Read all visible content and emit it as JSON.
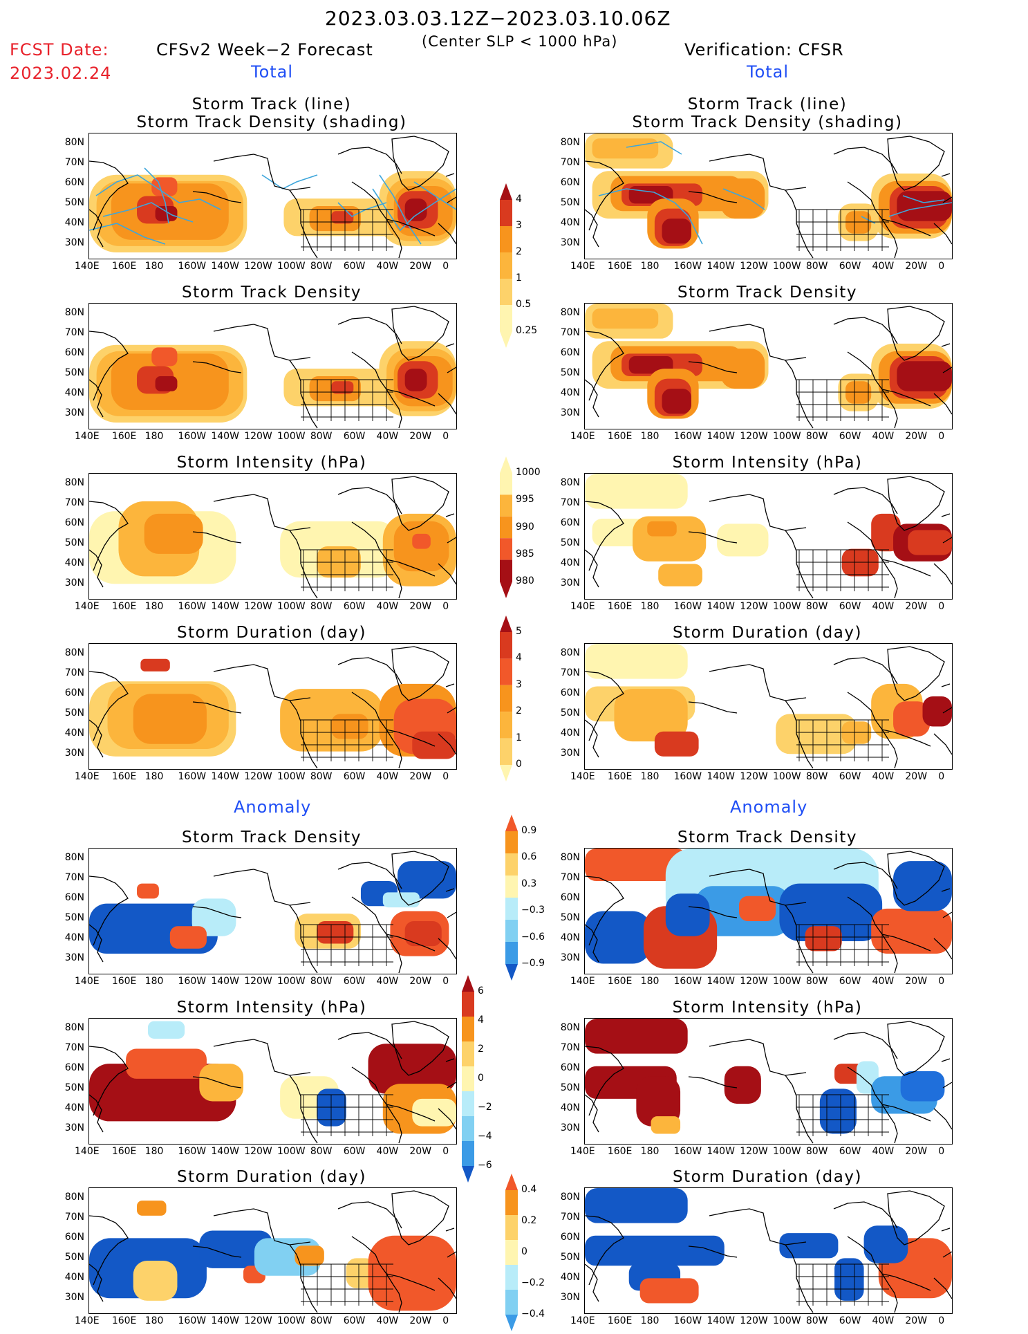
{
  "header": {
    "period": "2023.03.03.12Z−2023.03.10.06Z",
    "condition": "(Center SLP < 1000 hPa)",
    "fcst_label": "FCST Date:",
    "fcst_date": "2023.02.24",
    "left_model": "CFSv2 Week−2 Forecast",
    "right_model": "Verification: CFSR",
    "total_left": "Total",
    "total_right": "Total",
    "anomaly_left": "Anomaly",
    "anomaly_right": "Anomaly"
  },
  "panel_titles": {
    "track_line": "Storm Track (line)",
    "track_density_shading": "Storm Track Density (shading)",
    "density": "Storm Track Density",
    "intensity": "Storm Intensity (hPa)",
    "duration": "Storm Duration (day)"
  },
  "axes": {
    "lat_labels": [
      "80N",
      "70N",
      "60N",
      "50N",
      "40N",
      "30N"
    ],
    "lon_labels": [
      "140E",
      "160E",
      "180",
      "160W",
      "140W",
      "120W",
      "100W",
      "80W",
      "60W",
      "40W",
      "20W",
      "0"
    ]
  },
  "colors": {
    "lightyellow": "#fff5b0",
    "yellow": "#fdd26a",
    "lightorange": "#fcb53c",
    "orange": "#f7941d",
    "redorange": "#f1582a",
    "red": "#d93a1f",
    "darkred": "#a50f15",
    "lightblue": "#b8ecf9",
    "skyblue": "#81d0f2",
    "midblue": "#3b9be6",
    "blue": "#1f6fdb",
    "deepblue": "#1358c6",
    "track": "#3ea6db"
  },
  "colorbars": {
    "density_total": [
      "0.25",
      "0.5",
      "1",
      "2",
      "3",
      "4"
    ],
    "intensity_total": [
      "1000",
      "995",
      "990",
      "985",
      "980"
    ],
    "duration_total": [
      "0",
      "1",
      "2",
      "3",
      "4",
      "5"
    ],
    "density_anom": [
      "0.9",
      "0.6",
      "0.3",
      "−0.3",
      "−0.6",
      "−0.9"
    ],
    "intensity_anom": [
      "6",
      "4",
      "2",
      "0",
      "−2",
      "−4",
      "−6"
    ],
    "duration_anom": [
      "0.4",
      "0.2",
      "0",
      "−0.2",
      "−0.4"
    ]
  },
  "chart_data": [
    {
      "panel": "forecast_total_track",
      "type": "heatmap",
      "title": "Storm Track (line) / Storm Track Density (shading)"
    },
    {
      "panel": "forecast_total_density",
      "type": "heatmap",
      "title": "Storm Track Density"
    },
    {
      "panel": "forecast_total_intensity",
      "type": "heatmap",
      "title": "Storm Intensity (hPa)"
    },
    {
      "panel": "forecast_total_duration",
      "type": "heatmap",
      "title": "Storm Duration (day)"
    },
    {
      "panel": "forecast_anom_density",
      "type": "heatmap",
      "title": "Storm Track Density"
    },
    {
      "panel": "forecast_anom_intensity",
      "type": "heatmap",
      "title": "Storm Intensity (hPa)"
    },
    {
      "panel": "forecast_anom_duration",
      "type": "heatmap",
      "title": "Storm Duration (day)"
    },
    {
      "panel": "verif_total_track",
      "type": "heatmap",
      "title": "Storm Track (line) / Storm Track Density (shading)"
    },
    {
      "panel": "verif_total_density",
      "type": "heatmap",
      "title": "Storm Track Density"
    },
    {
      "panel": "verif_total_intensity",
      "type": "heatmap",
      "title": "Storm Intensity (hPa)"
    },
    {
      "panel": "verif_total_duration",
      "type": "heatmap",
      "title": "Storm Duration (day)"
    },
    {
      "panel": "verif_anom_density",
      "type": "heatmap",
      "title": "Storm Track Density"
    },
    {
      "panel": "verif_anom_intensity",
      "type": "heatmap",
      "title": "Storm Intensity (hPa)"
    },
    {
      "panel": "verif_anom_duration",
      "type": "heatmap",
      "title": "Storm Duration (day)"
    }
  ]
}
